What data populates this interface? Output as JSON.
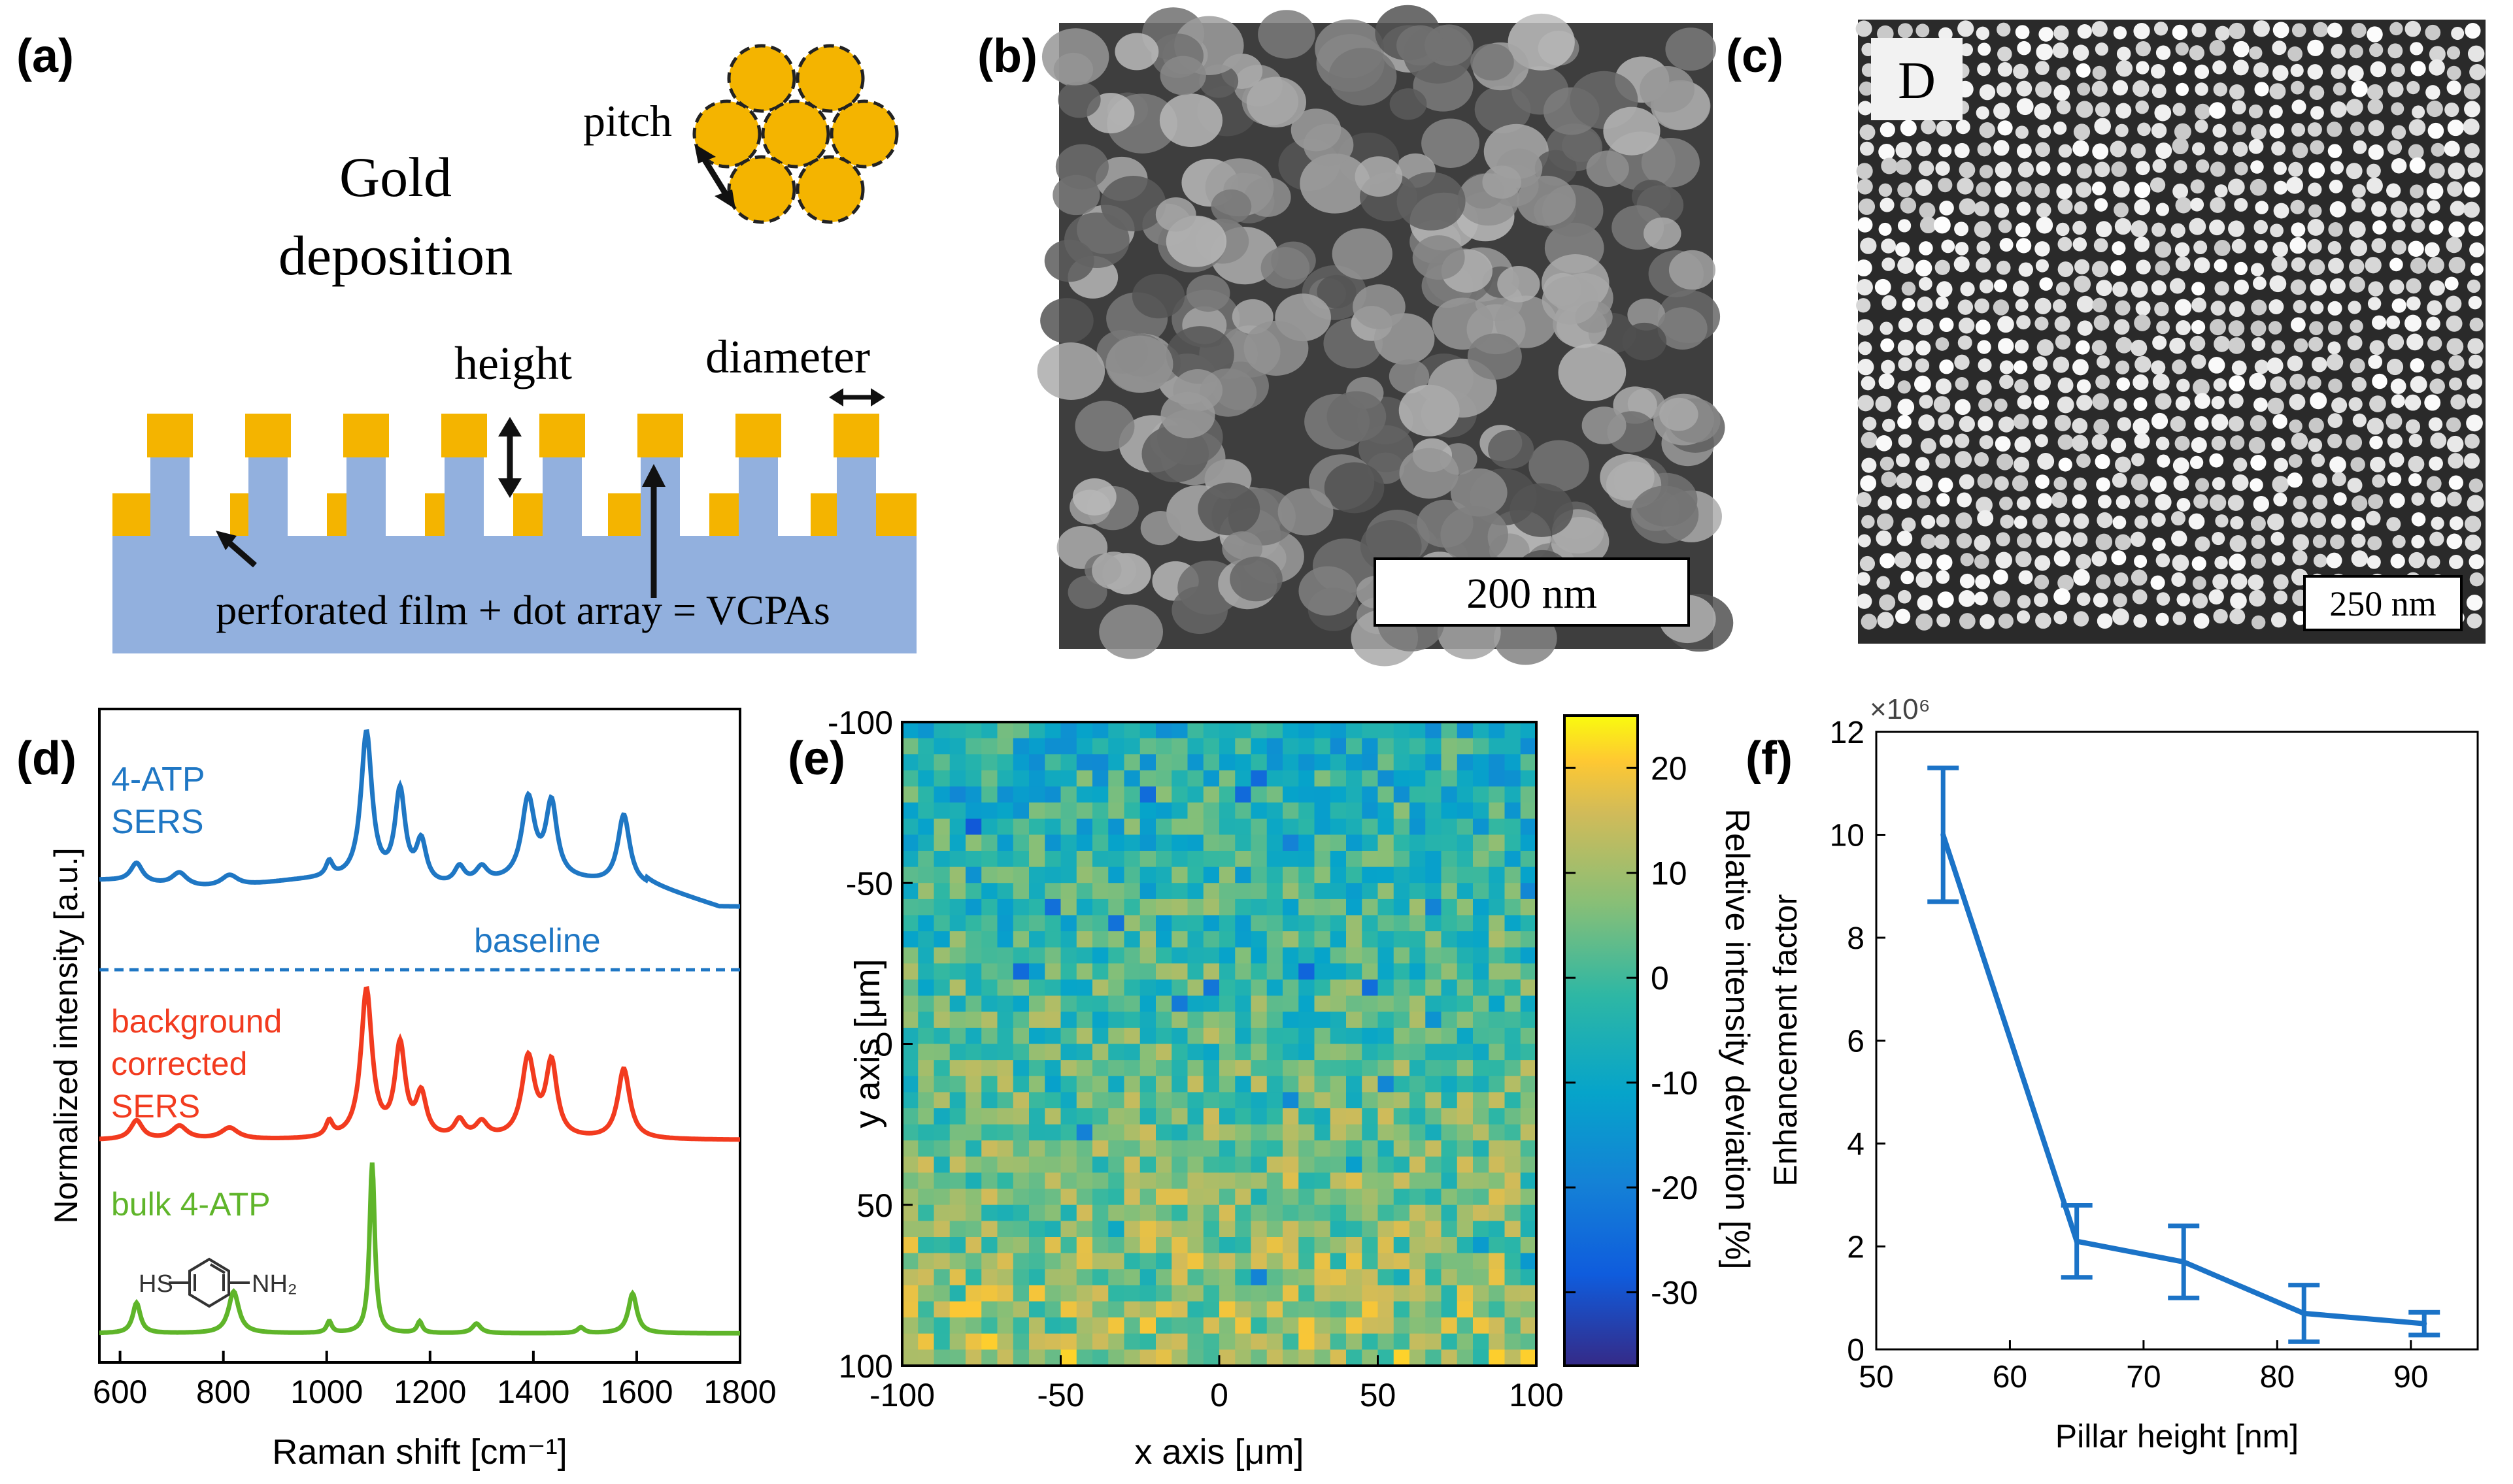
{
  "panels": {
    "a": {
      "label": "(a)",
      "title_line1": "Gold",
      "title_line2": "deposition",
      "pitch": "pitch",
      "height": "height",
      "diameter": "diameter",
      "caption": "perforated film + dot array = VCPAs"
    },
    "b": {
      "label": "(b)",
      "scalebar": "200 nm"
    },
    "c": {
      "label": "(c)",
      "scalebar": "250 nm",
      "inset": "D"
    },
    "d": {
      "label": "(d)",
      "ylabel": "Normalized intensity [a.u.]",
      "xlabel": "Raman shift [cm⁻¹]",
      "s1": "4-ATP",
      "s2": "SERS",
      "baseline": "baseline",
      "r1": "background",
      "r2": "corrected",
      "r3": "SERS",
      "g1": "bulk 4-ATP",
      "mol_left": "HS",
      "mol_right": "NH₂",
      "colors": {
        "blue": "#1f77c4",
        "red": "#f23b1f",
        "green": "#5fb52a"
      }
    },
    "e": {
      "label": "(e)",
      "xlabel": "x axis [μm]",
      "ylabel": "y axis [μm]",
      "cblabel": "Relative intensity deviation [%]"
    },
    "f": {
      "label": "(f)",
      "exponent": "×10⁶",
      "color": "#1b73c7"
    }
  },
  "chart_data": [
    {
      "panel": "d",
      "type": "line",
      "xlabel": "Raman shift [cm⁻¹]",
      "ylabel": "Normalized intensity [a.u.]",
      "xlim": [
        560,
        1800
      ],
      "xticks": [
        600,
        800,
        1000,
        1200,
        1400,
        1600,
        1800
      ],
      "xticklabels": [
        "600",
        "800",
        "1000",
        "1200",
        "1400",
        "1600",
        "1800"
      ],
      "series": [
        {
          "name": "4-ATP SERS",
          "color": "#1f77c4",
          "offset": 2.3,
          "bg": true,
          "peaks": [
            [
              632,
              0.1,
              14
            ],
            [
              715,
              0.07,
              18
            ],
            [
              812,
              0.06,
              20
            ],
            [
              1005,
              0.08,
              8
            ],
            [
              1077,
              0.78,
              13
            ],
            [
              1142,
              0.48,
              12
            ],
            [
              1183,
              0.22,
              12
            ],
            [
              1257,
              0.09,
              12
            ],
            [
              1300,
              0.08,
              14
            ],
            [
              1390,
              0.42,
              15
            ],
            [
              1435,
              0.39,
              13
            ],
            [
              1575,
              0.37,
              14
            ]
          ]
        },
        {
          "name": "background corrected SERS",
          "color": "#f23b1f",
          "offset": 1.07,
          "bg": false,
          "peaks": [
            [
              632,
              0.1,
              14
            ],
            [
              715,
              0.07,
              18
            ],
            [
              812,
              0.06,
              20
            ],
            [
              1005,
              0.08,
              8
            ],
            [
              1077,
              0.78,
              13
            ],
            [
              1142,
              0.48,
              12
            ],
            [
              1183,
              0.22,
              12
            ],
            [
              1257,
              0.09,
              12
            ],
            [
              1300,
              0.08,
              14
            ],
            [
              1390,
              0.42,
              15
            ],
            [
              1435,
              0.39,
              13
            ],
            [
              1575,
              0.37,
              14
            ]
          ]
        },
        {
          "name": "bulk 4-ATP",
          "color": "#5fb52a",
          "offset": 0.05,
          "bg": false,
          "peaks": [
            [
              632,
              0.16,
              9
            ],
            [
              820,
              0.22,
              12
            ],
            [
              1005,
              0.06,
              6
            ],
            [
              1088,
              0.9,
              6
            ],
            [
              1180,
              0.06,
              6
            ],
            [
              1290,
              0.05,
              10
            ],
            [
              1492,
              0.03,
              8
            ],
            [
              1592,
              0.21,
              10
            ]
          ]
        }
      ],
      "baseline": {
        "y": 2.3,
        "label": "baseline"
      }
    },
    {
      "panel": "e",
      "type": "heatmap",
      "xlabel": "x axis [μm]",
      "ylabel": "y axis [μm]",
      "xlim": [
        -100,
        100
      ],
      "ylim": [
        -100,
        100
      ],
      "xticks": [
        -100,
        -50,
        0,
        50,
        100
      ],
      "yticks": [
        -100,
        -50,
        0,
        50,
        100
      ],
      "grid_size": 40,
      "colorbar": {
        "min": -37,
        "max": 25,
        "ticks": [
          20,
          10,
          0,
          -10,
          -20,
          -30
        ],
        "label": "Relative intensity deviation [%]"
      }
    },
    {
      "panel": "f",
      "type": "line",
      "xlabel": "Pillar height [nm]",
      "ylabel": "Enhancement factor",
      "xlim": [
        50,
        95
      ],
      "ylim": [
        0,
        12
      ],
      "xticks": [
        50,
        60,
        70,
        80,
        90
      ],
      "yticks": [
        0,
        2,
        4,
        6,
        8,
        10,
        12
      ],
      "y_multiplier": "×10⁶",
      "x": [
        55,
        65,
        73,
        82,
        91
      ],
      "y": [
        10.0,
        2.1,
        1.7,
        0.7,
        0.5
      ],
      "err": [
        1.3,
        0.7,
        0.7,
        0.55,
        0.22
      ]
    }
  ]
}
